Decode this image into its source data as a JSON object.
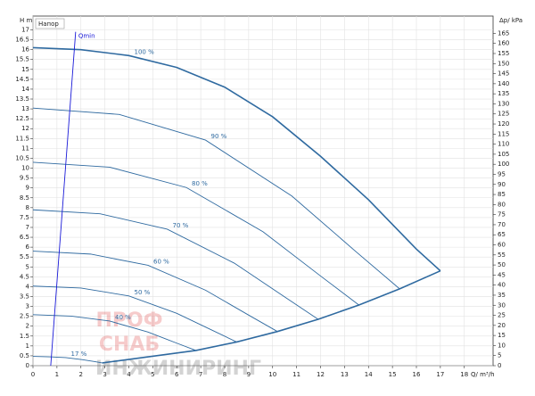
{
  "chart_data": {
    "type": "line",
    "legend_label": "Напор",
    "y_label": "H m",
    "y2_label": "Δp/ kPa",
    "x_label": "Q/ m³/h",
    "watermark": [
      "ПРОФ",
      "СНАБ",
      "ИНЖИНИРИНГ"
    ],
    "grid": true,
    "xlim": [
      0,
      19.2
    ],
    "xticks": [
      0,
      1,
      2,
      3,
      4,
      5,
      6,
      7,
      8,
      9,
      10,
      11,
      12,
      13,
      14,
      15,
      16,
      17,
      18
    ],
    "ylim": [
      0,
      17.7
    ],
    "yticks": [
      0,
      0.5,
      1,
      1.5,
      2,
      2.5,
      3,
      3.5,
      4,
      4.5,
      5,
      5.5,
      6,
      6.5,
      7,
      7.5,
      8,
      8.5,
      9,
      9.5,
      10,
      10.5,
      11,
      11.5,
      12,
      12.5,
      13,
      13.5,
      14,
      14.5,
      15,
      15.5,
      16,
      16.5,
      17
    ],
    "y2lim": [
      0,
      173.6
    ],
    "y2ticks": [
      0,
      5,
      10,
      15,
      20,
      25,
      30,
      35,
      40,
      45,
      50,
      55,
      60,
      65,
      70,
      75,
      80,
      85,
      90,
      95,
      100,
      105,
      110,
      115,
      120,
      125,
      130,
      135,
      140,
      145,
      150,
      155,
      160,
      165
    ],
    "series": [
      {
        "name": "100 %",
        "color": "#2f6aa0",
        "x": [
          0,
          2,
          4,
          6,
          8,
          10,
          12,
          14,
          16,
          17
        ],
        "values": [
          16.1,
          16.0,
          15.7,
          15.1,
          14.1,
          12.6,
          10.6,
          8.4,
          5.9,
          4.8
        ]
      },
      {
        "name": "90 %",
        "color": "#2f6aa0",
        "x": [
          0,
          3.6,
          7.2,
          10.8,
          13.5,
          15.3
        ],
        "values": [
          13.04,
          12.72,
          11.42,
          8.59,
          5.75,
          3.89
        ]
      },
      {
        "name": "80 %",
        "color": "#2f6aa0",
        "x": [
          0,
          3.2,
          6.4,
          9.6,
          12,
          13.6
        ],
        "values": [
          10.3,
          10.05,
          9.02,
          6.78,
          4.54,
          3.07
        ]
      },
      {
        "name": "70 %",
        "color": "#2f6aa0",
        "x": [
          0,
          2.8,
          5.6,
          8.4,
          10.5,
          11.9
        ],
        "values": [
          7.89,
          7.69,
          6.91,
          5.19,
          3.48,
          2.35
        ]
      },
      {
        "name": "60 %",
        "color": "#2f6aa0",
        "x": [
          0,
          2.4,
          4.8,
          7.2,
          9,
          10.2
        ],
        "values": [
          5.8,
          5.65,
          5.08,
          3.82,
          2.56,
          1.73
        ]
      },
      {
        "name": "50 %",
        "color": "#2f6aa0",
        "x": [
          0,
          2,
          4,
          6,
          7.5,
          8.5
        ],
        "values": [
          4.03,
          3.93,
          3.53,
          2.65,
          1.78,
          1.2
        ]
      },
      {
        "name": "40 %",
        "color": "#2f6aa0",
        "x": [
          0,
          1.6,
          3.2,
          4.8,
          6,
          6.8
        ],
        "values": [
          2.58,
          2.51,
          2.26,
          1.7,
          1.14,
          0.77
        ]
      },
      {
        "name": "17 %",
        "color": "#2f6aa0",
        "x": [
          0,
          0.68,
          1.36,
          2.04,
          2.55,
          2.89
        ],
        "values": [
          0.47,
          0.45,
          0.41,
          0.31,
          0.21,
          0.14
        ]
      },
      {
        "color": "#2f6aa0",
        "x": [
          2.89,
          6.8,
          8.5,
          10.2,
          11.9,
          13.6,
          15.3,
          17
        ],
        "values": [
          0.14,
          0.77,
          1.2,
          1.73,
          2.35,
          3.07,
          3.89,
          4.8
        ]
      },
      {
        "name": "Qmin",
        "color": "#1a1ad8",
        "x": [
          0.74,
          1.78
        ],
        "values": [
          0,
          16.9
        ]
      }
    ]
  }
}
